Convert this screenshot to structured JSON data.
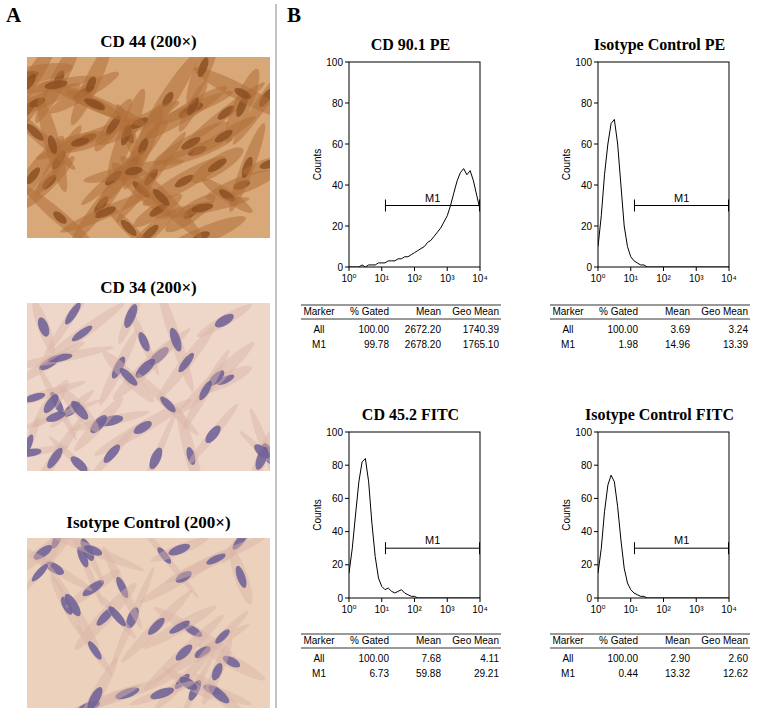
{
  "panels": {
    "a": {
      "label": "A",
      "images": [
        {
          "title": "CD 44 (200×)"
        },
        {
          "title": "CD 34 (200×)"
        },
        {
          "title": "Isotype Control (200×)"
        }
      ]
    },
    "b": {
      "label": "B"
    }
  },
  "chart_data": [
    {
      "type": "line",
      "title": "CD 90.1 PE",
      "y_label": "Counts",
      "log": "x",
      "color": "#000000",
      "x": [
        1,
        1.26,
        1.58,
        2,
        2.51,
        3.16,
        3.98,
        5.01,
        6.31,
        7.94,
        10,
        12.6,
        15.8,
        20,
        25.1,
        31.6,
        39.8,
        50.1,
        63.1,
        79.4,
        100,
        126,
        158,
        200,
        251,
        316,
        398,
        501,
        631,
        794,
        1000,
        1260,
        1580,
        2000,
        2510,
        3160,
        3980,
        5010,
        6310,
        7940,
        10000
      ],
      "values": [
        0,
        0,
        0,
        0,
        1,
        0,
        1,
        1,
        1,
        2,
        2,
        2,
        3,
        3,
        3,
        4,
        4,
        5,
        5,
        6,
        7,
        8,
        9,
        10,
        12,
        13,
        15,
        17,
        19,
        22,
        25,
        30,
        36,
        42,
        46,
        48,
        45,
        47,
        42,
        35,
        28
      ],
      "xlim": [
        1,
        10000
      ],
      "ylim": [
        0,
        100
      ],
      "xticks": [
        {
          "value": 1,
          "label": "10⁰"
        },
        {
          "value": 10,
          "label": "10¹"
        },
        {
          "value": 100,
          "label": "10²"
        },
        {
          "value": 1000,
          "label": "10³"
        },
        {
          "value": 10000,
          "label": "10⁴"
        }
      ],
      "yticks": [
        0,
        20,
        40,
        60,
        80,
        100
      ],
      "gate": {
        "label": "M1",
        "start": 13,
        "end": 10000,
        "level": 30
      },
      "table": {
        "columns": [
          "Marker",
          "% Gated",
          "Mean",
          "Geo Mean"
        ],
        "rows": [
          [
            "All",
            "100.00",
            "2672.20",
            "1740.39"
          ],
          [
            "M1",
            "99.78",
            "2678.20",
            "1765.10"
          ]
        ]
      }
    },
    {
      "type": "line",
      "title": "Isotype Control PE",
      "y_label": "Counts",
      "log": "x",
      "color": "#000000",
      "x": [
        1,
        1.26,
        1.58,
        2,
        2.51,
        3.16,
        3.98,
        5.01,
        6.31,
        7.94,
        10,
        12.6,
        15.8,
        20,
        25.1,
        31.6,
        39.8,
        50.1,
        63.1,
        79.4,
        100,
        126,
        158,
        200,
        251,
        316,
        398,
        501,
        631,
        794,
        1000,
        1260,
        1580,
        2000,
        2510,
        3160,
        3980,
        5010,
        6310,
        7940,
        10000
      ],
      "values": [
        10,
        25,
        45,
        60,
        70,
        72,
        60,
        40,
        20,
        10,
        5,
        3,
        2,
        1,
        1,
        0,
        0,
        0,
        0,
        0,
        0,
        0,
        0,
        0,
        0,
        0,
        0,
        0,
        0,
        0,
        0,
        0,
        0,
        0,
        0,
        0,
        0,
        0,
        0,
        0,
        0
      ],
      "xlim": [
        1,
        10000
      ],
      "ylim": [
        0,
        100
      ],
      "xticks": [
        {
          "value": 1,
          "label": "10⁰"
        },
        {
          "value": 10,
          "label": "10¹"
        },
        {
          "value": 100,
          "label": "10²"
        },
        {
          "value": 1000,
          "label": "10³"
        },
        {
          "value": 10000,
          "label": "10⁴"
        }
      ],
      "yticks": [
        0,
        20,
        40,
        60,
        80,
        100
      ],
      "gate": {
        "label": "M1",
        "start": 13,
        "end": 10000,
        "level": 30
      },
      "table": {
        "columns": [
          "Marker",
          "% Gated",
          "Mean",
          "Geo Mean"
        ],
        "rows": [
          [
            "All",
            "100.00",
            "3.69",
            "3.24"
          ],
          [
            "M1",
            "1.98",
            "14.96",
            "13.39"
          ]
        ]
      }
    },
    {
      "type": "line",
      "title": "CD 45.2 FITC",
      "y_label": "Counts",
      "log": "x",
      "color": "#000000",
      "x": [
        1,
        1.26,
        1.58,
        2,
        2.51,
        3.16,
        3.98,
        5.01,
        6.31,
        7.94,
        10,
        12.6,
        15.8,
        20,
        25.1,
        31.6,
        39.8,
        50.1,
        63.1,
        79.4,
        100,
        126,
        158,
        200,
        251,
        316,
        398,
        501,
        631,
        794,
        1000,
        1260,
        1580,
        2000,
        2510,
        3160,
        3980,
        5010,
        6310,
        7940,
        10000
      ],
      "values": [
        15,
        30,
        50,
        70,
        82,
        84,
        70,
        45,
        25,
        12,
        7,
        5,
        6,
        4,
        3,
        4,
        5,
        3,
        2,
        1,
        1,
        0,
        0,
        0,
        0,
        0,
        0,
        0,
        0,
        0,
        0,
        0,
        0,
        0,
        0,
        0,
        0,
        0,
        0,
        0,
        0
      ],
      "xlim": [
        1,
        10000
      ],
      "ylim": [
        0,
        100
      ],
      "xticks": [
        {
          "value": 1,
          "label": "10⁰"
        },
        {
          "value": 10,
          "label": "10¹"
        },
        {
          "value": 100,
          "label": "10²"
        },
        {
          "value": 1000,
          "label": "10³"
        },
        {
          "value": 10000,
          "label": "10⁴"
        }
      ],
      "yticks": [
        0,
        20,
        40,
        60,
        80,
        100
      ],
      "gate": {
        "label": "M1",
        "start": 13,
        "end": 10000,
        "level": 30
      },
      "table": {
        "columns": [
          "Marker",
          "% Gated",
          "Mean",
          "Geo Mean"
        ],
        "rows": [
          [
            "All",
            "100.00",
            "7.68",
            "4.11"
          ],
          [
            "M1",
            "6.73",
            "59.88",
            "29.21"
          ]
        ]
      }
    },
    {
      "type": "line",
      "title": "Isotype Control FITC",
      "y_label": "Counts",
      "log": "x",
      "color": "#000000",
      "x": [
        1,
        1.26,
        1.58,
        2,
        2.51,
        3.16,
        3.98,
        5.01,
        6.31,
        7.94,
        10,
        12.6,
        15.8,
        20,
        25.1,
        31.6,
        39.8,
        50.1,
        63.1,
        79.4,
        100,
        126,
        158,
        200,
        251,
        316,
        398,
        501,
        631,
        794,
        1000,
        1260,
        1580,
        2000,
        2510,
        3160,
        3980,
        5010,
        6310,
        7940,
        10000
      ],
      "values": [
        15,
        30,
        52,
        68,
        74,
        70,
        55,
        35,
        18,
        9,
        5,
        3,
        2,
        1,
        1,
        0,
        0,
        0,
        0,
        0,
        0,
        0,
        0,
        0,
        0,
        0,
        0,
        0,
        0,
        0,
        0,
        0,
        0,
        0,
        0,
        0,
        0,
        0,
        0,
        0,
        0
      ],
      "xlim": [
        1,
        10000
      ],
      "ylim": [
        0,
        100
      ],
      "xticks": [
        {
          "value": 1,
          "label": "10⁰"
        },
        {
          "value": 10,
          "label": "10¹"
        },
        {
          "value": 100,
          "label": "10²"
        },
        {
          "value": 1000,
          "label": "10³"
        },
        {
          "value": 10000,
          "label": "10⁴"
        }
      ],
      "yticks": [
        0,
        20,
        40,
        60,
        80,
        100
      ],
      "gate": {
        "label": "M1",
        "start": 13,
        "end": 10000,
        "level": 30
      },
      "table": {
        "columns": [
          "Marker",
          "% Gated",
          "Mean",
          "Geo Mean"
        ],
        "rows": [
          [
            "All",
            "100.00",
            "2.90",
            "2.60"
          ],
          [
            "M1",
            "0.44",
            "13.32",
            "12.62"
          ]
        ]
      }
    }
  ]
}
